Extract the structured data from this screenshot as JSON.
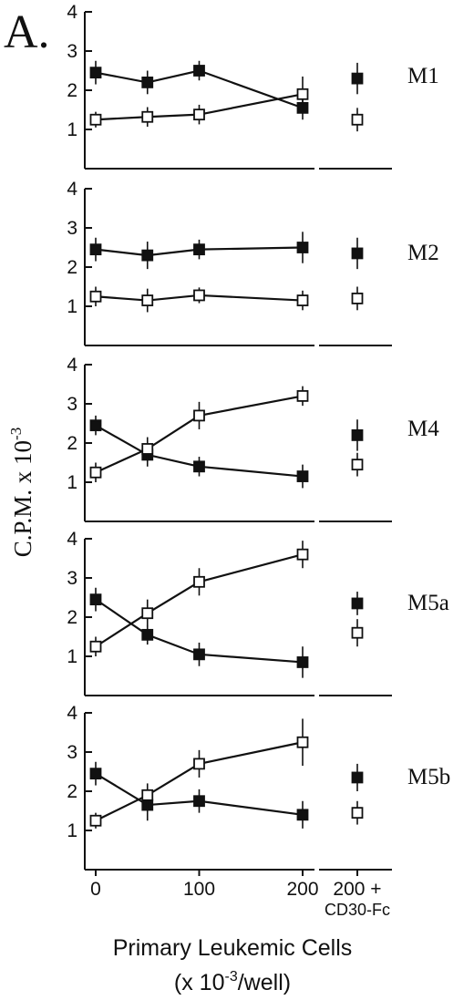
{
  "figure_label": "A.",
  "ylabel": "C.P.M. x 10",
  "ylabel_exponent": "-3",
  "xlabel_line1": "Primary Leukemic Cells",
  "xlabel_line2_prefix": "(x 10",
  "xlabel_line2_exponent": "-3",
  "xlabel_line2_suffix": "/well)",
  "x_ticks": [
    "0",
    "100",
    "200"
  ],
  "extra_tick_line1": "200 +",
  "extra_tick_line2": "CD30-Fc",
  "y_ticks": [
    "1",
    "2",
    "3",
    "4"
  ],
  "colors": {
    "filled": "#111111",
    "open_fill": "#ffffff",
    "stroke": "#111111"
  },
  "chart_data": [
    {
      "type": "line",
      "panel": "M1",
      "x": [
        0,
        50,
        100,
        200
      ],
      "ylim": [
        0,
        4
      ],
      "series": [
        {
          "marker": "filled-square",
          "values": [
            2.45,
            2.2,
            2.5,
            1.55
          ],
          "errors": [
            0.3,
            0.3,
            0.25,
            0.3
          ],
          "cd30fc": 2.3,
          "cd30fc_error": 0.4
        },
        {
          "marker": "open-square",
          "values": [
            1.25,
            1.32,
            1.38,
            1.9
          ],
          "errors": [
            0.2,
            0.25,
            0.25,
            0.45
          ],
          "cd30fc": 1.25,
          "cd30fc_error": 0.3
        }
      ]
    },
    {
      "type": "line",
      "panel": "M2",
      "x": [
        0,
        50,
        100,
        200
      ],
      "ylim": [
        0,
        4
      ],
      "series": [
        {
          "marker": "filled-square",
          "values": [
            2.45,
            2.3,
            2.45,
            2.5
          ],
          "errors": [
            0.3,
            0.35,
            0.25,
            0.4
          ],
          "cd30fc": 2.35,
          "cd30fc_error": 0.4
        },
        {
          "marker": "open-square",
          "values": [
            1.25,
            1.15,
            1.28,
            1.15
          ],
          "errors": [
            0.25,
            0.3,
            0.2,
            0.25
          ],
          "cd30fc": 1.2,
          "cd30fc_error": 0.3
        }
      ]
    },
    {
      "type": "line",
      "panel": "M4",
      "x": [
        0,
        50,
        100,
        200
      ],
      "ylim": [
        0,
        4
      ],
      "series": [
        {
          "marker": "filled-square",
          "values": [
            2.45,
            1.7,
            1.4,
            1.15
          ],
          "errors": [
            0.25,
            0.3,
            0.25,
            0.3
          ],
          "cd30fc": 2.2,
          "cd30fc_error": 0.4
        },
        {
          "marker": "open-square",
          "values": [
            1.25,
            1.85,
            2.7,
            3.2
          ],
          "errors": [
            0.25,
            0.3,
            0.35,
            0.25
          ],
          "cd30fc": 1.45,
          "cd30fc_error": 0.3
        }
      ]
    },
    {
      "type": "line",
      "panel": "M5a",
      "x": [
        0,
        50,
        100,
        200
      ],
      "ylim": [
        0,
        4
      ],
      "series": [
        {
          "marker": "filled-square",
          "values": [
            2.45,
            1.55,
            1.05,
            0.85
          ],
          "errors": [
            0.3,
            0.25,
            0.3,
            0.4
          ],
          "cd30fc": 2.35,
          "cd30fc_error": 0.3
        },
        {
          "marker": "open-square",
          "values": [
            1.25,
            2.1,
            2.9,
            3.6
          ],
          "errors": [
            0.25,
            0.35,
            0.35,
            0.35
          ],
          "cd30fc": 1.6,
          "cd30fc_error": 0.35
        }
      ]
    },
    {
      "type": "line",
      "panel": "M5b",
      "x": [
        0,
        50,
        100,
        200
      ],
      "ylim": [
        0,
        4
      ],
      "series": [
        {
          "marker": "filled-square",
          "values": [
            2.45,
            1.65,
            1.75,
            1.4
          ],
          "errors": [
            0.3,
            0.4,
            0.3,
            0.35
          ],
          "cd30fc": 2.35,
          "cd30fc_error": 0.35
        },
        {
          "marker": "open-square",
          "values": [
            1.25,
            1.9,
            2.7,
            3.25
          ],
          "errors": [
            0.2,
            0.3,
            0.35,
            0.6
          ],
          "cd30fc": 1.45,
          "cd30fc_error": 0.3
        }
      ]
    }
  ]
}
